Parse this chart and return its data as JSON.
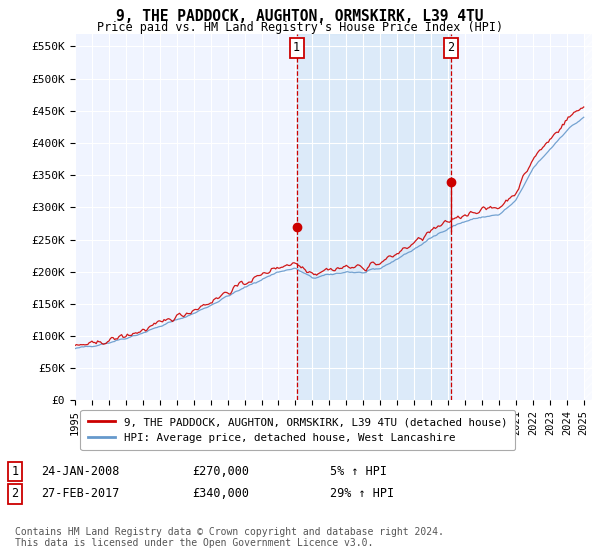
{
  "title": "9, THE PADDOCK, AUGHTON, ORMSKIRK, L39 4TU",
  "subtitle": "Price paid vs. HM Land Registry's House Price Index (HPI)",
  "ylabel_ticks": [
    "£0",
    "£50K",
    "£100K",
    "£150K",
    "£200K",
    "£250K",
    "£300K",
    "£350K",
    "£400K",
    "£450K",
    "£500K",
    "£550K"
  ],
  "ytick_values": [
    0,
    50000,
    100000,
    150000,
    200000,
    250000,
    300000,
    350000,
    400000,
    450000,
    500000,
    550000
  ],
  "ylim": [
    0,
    570000
  ],
  "xlim_start": 1995.0,
  "xlim_end": 2025.5,
  "xtick_years": [
    1995,
    1996,
    1997,
    1998,
    1999,
    2000,
    2001,
    2002,
    2003,
    2004,
    2005,
    2006,
    2007,
    2008,
    2009,
    2010,
    2011,
    2012,
    2013,
    2014,
    2015,
    2016,
    2017,
    2018,
    2019,
    2020,
    2021,
    2022,
    2023,
    2024,
    2025
  ],
  "sale1_x": 2008.07,
  "sale1_y": 270000,
  "sale1_label": "1",
  "sale1_date": "24-JAN-2008",
  "sale1_price": "£270,000",
  "sale1_hpi": "5% ↑ HPI",
  "sale2_x": 2017.17,
  "sale2_y": 340000,
  "sale2_label": "2",
  "sale2_date": "27-FEB-2017",
  "sale2_price": "£340,000",
  "sale2_hpi": "29% ↑ HPI",
  "hpi_sale2_y": 263000,
  "line_color_red": "#cc0000",
  "line_color_blue": "#6699cc",
  "background_color": "#ffffff",
  "plot_bg_color": "#dce8f5",
  "plot_bg_between": "#dce8f5",
  "plot_bg_outside": "#f0f4ff",
  "grid_color": "#ffffff",
  "vline_color": "#cc0000",
  "shade_color": "#d0e4f5",
  "legend1_label": "9, THE PADDOCK, AUGHTON, ORMSKIRK, L39 4TU (detached house)",
  "legend2_label": "HPI: Average price, detached house, West Lancashire",
  "footer": "Contains HM Land Registry data © Crown copyright and database right 2024.\nThis data is licensed under the Open Government Licence v3.0.",
  "hpi_base": [
    80000,
    85000,
    90000,
    97000,
    105000,
    115000,
    125000,
    135000,
    148000,
    162000,
    175000,
    188000,
    200000,
    205000,
    190000,
    195000,
    200000,
    198000,
    205000,
    220000,
    235000,
    252000,
    268000,
    278000,
    285000,
    288000,
    310000,
    360000,
    390000,
    420000,
    440000
  ],
  "prop_premium": 1.04
}
